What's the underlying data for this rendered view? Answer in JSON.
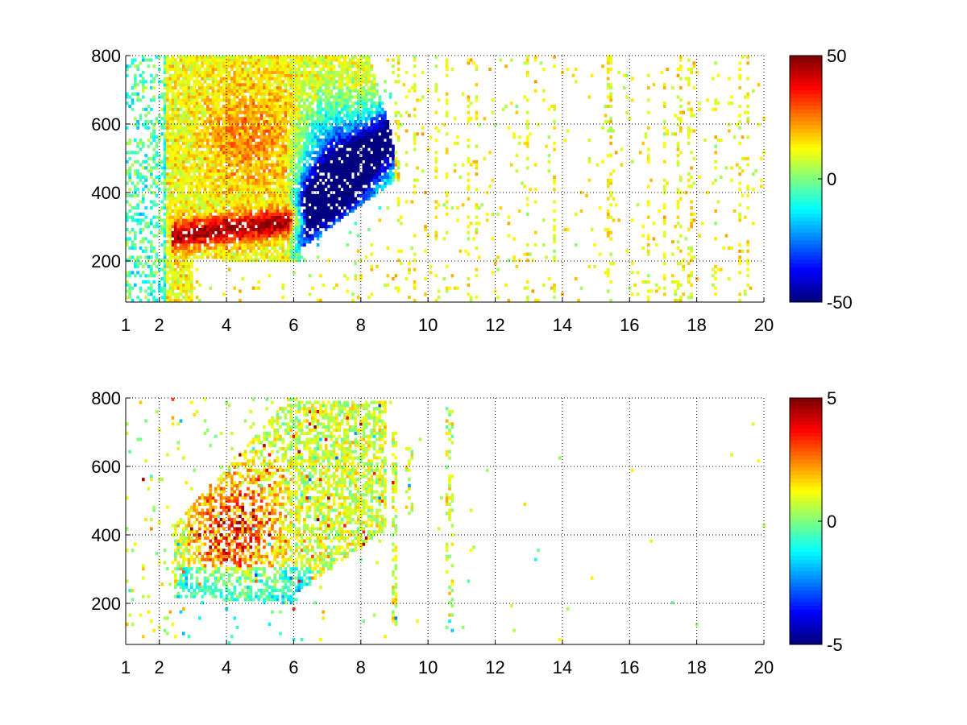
{
  "chart_data": [
    {
      "type": "heatmap",
      "title": "",
      "xlabel": "",
      "ylabel": "",
      "xlim": [
        1,
        20
      ],
      "ylim": [
        80,
        800
      ],
      "xticks": [
        1,
        2,
        4,
        6,
        8,
        10,
        12,
        14,
        16,
        18,
        20
      ],
      "xtick_labels": [
        "1",
        "2",
        "4",
        "6",
        "8",
        "10",
        "12",
        "14",
        "16",
        "18",
        "20"
      ],
      "yticks": [
        200,
        400,
        600,
        800
      ],
      "ytick_labels": [
        "200",
        "400",
        "600",
        "800"
      ],
      "grid": true,
      "colormap": "jet",
      "colorbar": {
        "min": -50,
        "max": 50,
        "ticks": [
          50,
          0,
          -50
        ],
        "tick_labels": [
          "50",
          "0",
          "-50"
        ]
      },
      "features": [
        {
          "label": "",
          "x_range": [
            2.2,
            6.2
          ],
          "y_range": [
            250,
            330
          ],
          "value": 45
        },
        {
          "label": "",
          "x_range": [
            6,
            8.8
          ],
          "y_range": [
            300,
            700
          ],
          "value": -45
        },
        {
          "label": "",
          "x_range": [
            3,
            6
          ],
          "y_range": [
            400,
            750
          ],
          "value": 18
        },
        {
          "label": "",
          "x_range": [
            1,
            3
          ],
          "y_range": [
            80,
            800
          ],
          "value": 5
        },
        {
          "label": "",
          "x_range": [
            8.5,
            20
          ],
          "y_range": [
            80,
            800
          ],
          "value": 0
        }
      ]
    },
    {
      "type": "heatmap",
      "title": "",
      "xlabel": "",
      "ylabel": "",
      "xlim": [
        1,
        20
      ],
      "ylim": [
        80,
        800
      ],
      "xticks": [
        1,
        2,
        4,
        6,
        8,
        10,
        12,
        14,
        16,
        18,
        20
      ],
      "xtick_labels": [
        "1",
        "2",
        "4",
        "6",
        "8",
        "10",
        "12",
        "14",
        "16",
        "18",
        "20"
      ],
      "yticks": [
        200,
        400,
        600,
        800
      ],
      "ytick_labels": [
        "200",
        "400",
        "600",
        "800"
      ],
      "grid": true,
      "colormap": "jet",
      "colorbar": {
        "min": -5,
        "max": 5,
        "ticks": [
          5,
          0,
          -5
        ],
        "tick_labels": [
          "5",
          "0",
          "-5"
        ]
      },
      "features": [
        {
          "label": "",
          "x_range": [
            3,
            5.8
          ],
          "y_range": [
            250,
            600
          ],
          "value": 4
        },
        {
          "label": "",
          "x_range": [
            6,
            8.5
          ],
          "y_range": [
            200,
            780
          ],
          "value": 0
        },
        {
          "label": "",
          "x_range": [
            2.5,
            6
          ],
          "y_range": [
            180,
            300
          ],
          "value": -1.5
        },
        {
          "label": "",
          "x_range": [
            8.7,
            9.5
          ],
          "y_range": [
            150,
            650
          ],
          "value": 0.5
        },
        {
          "label": "",
          "x_range": [
            10.4,
            10.7
          ],
          "y_range": [
            120,
            770
          ],
          "value": 1
        }
      ]
    }
  ]
}
